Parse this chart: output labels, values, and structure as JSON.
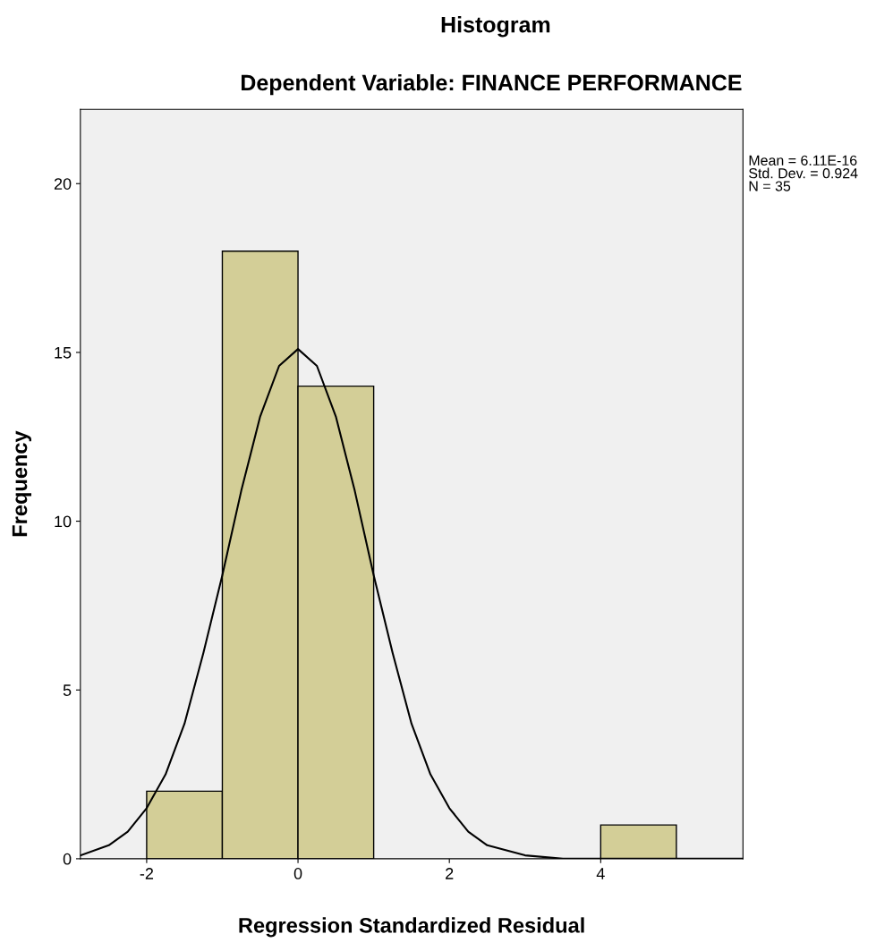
{
  "chart_data": {
    "type": "histogram",
    "title": "Histogram",
    "subtitle": "Dependent Variable: FINANCE PERFORMANCE",
    "xlabel": "Regression Standardized Residual",
    "ylabel": "Frequency",
    "bins": [
      -2,
      -1,
      0,
      1,
      2,
      3,
      4,
      5
    ],
    "series": [
      {
        "color": "#d3ce97",
        "values": [
          2,
          18,
          14,
          0,
          0,
          0,
          1
        ]
      },
      {
        "type": "line",
        "color": "#000000",
        "x": [
          -2.876,
          -2.5,
          -2.25,
          -2,
          -1.75,
          -1.5,
          -1.25,
          -1,
          -0.75,
          -0.5,
          -0.25,
          0,
          0.25,
          0.5,
          0.75,
          1,
          1.25,
          1.5,
          1.75,
          2,
          2.25,
          2.5,
          3,
          3.5,
          4,
          5.88
        ],
        "values": [
          0.1,
          0.4,
          0.8,
          1.5,
          2.5,
          4.0,
          6.1,
          8.4,
          10.9,
          13.1,
          14.6,
          15.1,
          14.6,
          13.1,
          10.9,
          8.4,
          6.1,
          4.0,
          2.5,
          1.5,
          0.8,
          0.4,
          0.1,
          0.0,
          0.0,
          0.0
        ]
      }
    ],
    "xlim": [
      -2.876,
      5.88
    ],
    "ylim": [
      0,
      22.2
    ],
    "xticks": [
      {
        "value": -2,
        "label": "-2"
      },
      0,
      2,
      4
    ],
    "yticks": [
      0,
      5,
      10,
      15,
      20
    ],
    "grid": false,
    "legend": false,
    "annotations": [
      "Mean = 6.11E-16",
      "Std. Dev. = 0.924",
      "N = 35"
    ]
  }
}
